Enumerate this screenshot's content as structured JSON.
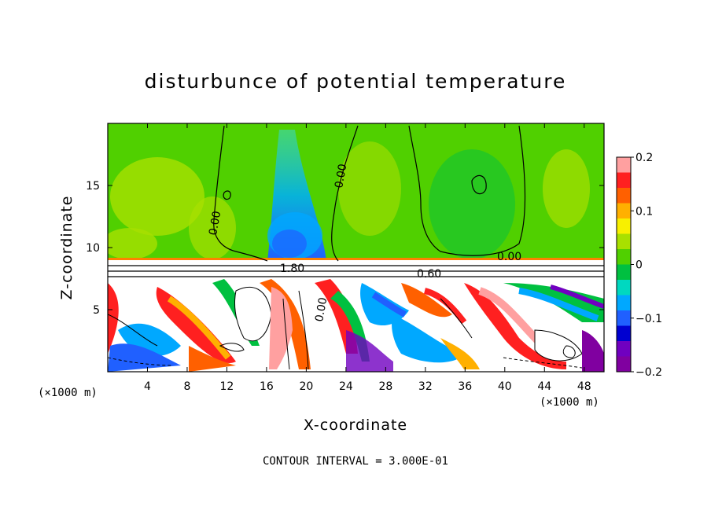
{
  "chart_data": {
    "type": "heatmap",
    "title": "disturbunce of potential temperature",
    "xlabel": "X-coordinate",
    "ylabel": "Z-coordinate",
    "x_unit_left": "(×1000 m)",
    "x_unit_right": "(×1000 m)",
    "xlim": [
      0,
      50
    ],
    "ylim": [
      0,
      20
    ],
    "x_ticks": [
      4,
      8,
      12,
      16,
      20,
      24,
      28,
      32,
      36,
      40,
      44,
      48
    ],
    "y_ticks": [
      5,
      10,
      15
    ],
    "colorbar": {
      "range": [
        -0.2,
        0.2
      ],
      "tick_labels": [
        "0.2",
        "0.1",
        "0",
        "−0.1",
        "−0.2"
      ],
      "tick_values": [
        0.2,
        0.1,
        0,
        -0.1,
        -0.2
      ],
      "colors": [
        "#ffa0a0",
        "#ff2020",
        "#ff6000",
        "#ffb000",
        "#f8f000",
        "#a8e000",
        "#50d000",
        "#00c040",
        "#00d8c0",
        "#00a8ff",
        "#2060ff",
        "#0000d0",
        "#7000c0",
        "#8000a0"
      ]
    },
    "contour_labels": [
      "0.00",
      "0.00",
      "0.00",
      "0.00",
      "1.80",
      "0.60"
    ],
    "contour_interval_label": "CONTOUR INTERVAL = 3.000E-01"
  }
}
